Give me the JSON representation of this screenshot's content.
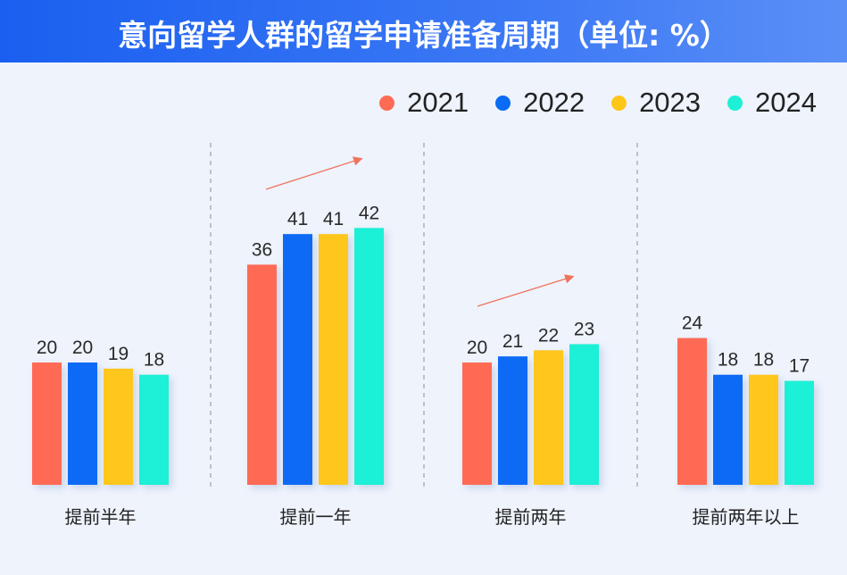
{
  "chart_data": {
    "type": "bar",
    "title": "意向留学人群的留学申请准备周期（单位: %）",
    "categories": [
      "提前半年",
      "提前一年",
      "提前两年",
      "提前两年以上"
    ],
    "series": [
      {
        "name": "2021",
        "color": "#ff6b55",
        "values": [
          20,
          36,
          20,
          24
        ]
      },
      {
        "name": "2022",
        "color": "#0a6bf5",
        "values": [
          20,
          41,
          21,
          18
        ]
      },
      {
        "name": "2023",
        "color": "#ffc61a",
        "values": [
          19,
          41,
          22,
          18
        ]
      },
      {
        "name": "2024",
        "color": "#1ef0d6",
        "values": [
          18,
          42,
          23,
          17
        ]
      }
    ],
    "xlabel": "",
    "ylabel": "",
    "ylim": [
      0,
      45
    ],
    "grid": false,
    "legend": "top-right",
    "annotations": [
      "upward trend arrow over 提前一年",
      "upward trend arrow over 提前两年"
    ]
  }
}
